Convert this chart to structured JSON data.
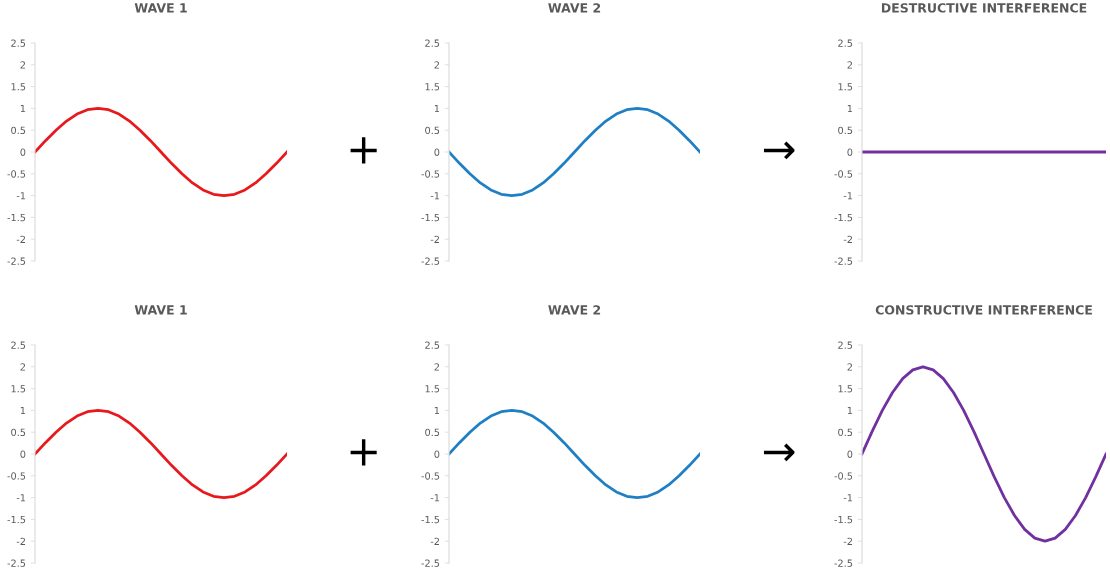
{
  "chart_data": [
    {
      "type": "line",
      "title": "WAVE 1",
      "categories": [
        null,
        null,
        null,
        null,
        null,
        null,
        null,
        null,
        null,
        null,
        null,
        null,
        null,
        null,
        null,
        null,
        null,
        null,
        null,
        null,
        null,
        null,
        null,
        null,
        null
      ],
      "ylim": [
        -2.5,
        2.5
      ],
      "yticks": [
        -2.5,
        -2,
        -1.5,
        -1,
        -0.5,
        0,
        0.5,
        1,
        1.5,
        2,
        2.5
      ],
      "grid": false,
      "legend": false,
      "marker": "none",
      "series": [
        {
          "color": "#e8191c",
          "values": [
            0,
            0.26,
            0.5,
            0.71,
            0.87,
            0.97,
            1,
            0.97,
            0.87,
            0.71,
            0.5,
            0.26,
            0,
            -0.26,
            -0.5,
            -0.71,
            -0.87,
            -0.97,
            -1,
            -0.97,
            -0.87,
            -0.71,
            -0.5,
            -0.26,
            0
          ]
        }
      ]
    },
    {
      "type": "line",
      "title": "WAVE 2",
      "annotations": [
        "+"
      ],
      "categories": [
        null,
        null,
        null,
        null,
        null,
        null,
        null,
        null,
        null,
        null,
        null,
        null,
        null,
        null,
        null,
        null,
        null,
        null,
        null,
        null,
        null,
        null,
        null,
        null,
        null
      ],
      "ylim": [
        -2.5,
        2.5
      ],
      "yticks": [
        -2.5,
        -2,
        -1.5,
        -1,
        -0.5,
        0,
        0.5,
        1,
        1.5,
        2,
        2.5
      ],
      "grid": false,
      "legend": false,
      "marker": "none",
      "series": [
        {
          "color": "#1f7fc4",
          "values": [
            0,
            -0.26,
            -0.5,
            -0.71,
            -0.87,
            -0.97,
            -1,
            -0.97,
            -0.87,
            -0.71,
            -0.5,
            -0.26,
            0,
            0.26,
            0.5,
            0.71,
            0.87,
            0.97,
            1,
            0.97,
            0.87,
            0.71,
            0.5,
            0.26,
            0
          ]
        }
      ]
    },
    {
      "type": "line",
      "title": "DESTRUCTIVE INTERFERENCE",
      "annotations": [
        "→"
      ],
      "categories": [
        null,
        null,
        null,
        null,
        null,
        null,
        null,
        null,
        null,
        null,
        null,
        null,
        null,
        null,
        null,
        null,
        null,
        null,
        null,
        null,
        null,
        null,
        null,
        null,
        null
      ],
      "ylim": [
        -2.5,
        2.5
      ],
      "yticks": [
        -2.5,
        -2,
        -1.5,
        -1,
        -0.5,
        0,
        0.5,
        1,
        1.5,
        2,
        2.5
      ],
      "grid": false,
      "legend": false,
      "marker": "none",
      "series": [
        {
          "color": "#7030a0",
          "values": [
            0,
            0,
            0,
            0,
            0,
            0,
            0,
            0,
            0,
            0,
            0,
            0,
            0,
            0,
            0,
            0,
            0,
            0,
            0,
            0,
            0,
            0,
            0,
            0,
            0
          ]
        }
      ]
    },
    {
      "type": "line",
      "title": "WAVE 1",
      "categories": [
        null,
        null,
        null,
        null,
        null,
        null,
        null,
        null,
        null,
        null,
        null,
        null,
        null,
        null,
        null,
        null,
        null,
        null,
        null,
        null,
        null,
        null,
        null,
        null,
        null
      ],
      "ylim": [
        -2.5,
        2.5
      ],
      "yticks": [
        -2.5,
        -2,
        -1.5,
        -1,
        -0.5,
        0,
        0.5,
        1,
        1.5,
        2,
        2.5
      ],
      "grid": false,
      "legend": false,
      "marker": "none",
      "series": [
        {
          "color": "#e8191c",
          "values": [
            0,
            0.26,
            0.5,
            0.71,
            0.87,
            0.97,
            1,
            0.97,
            0.87,
            0.71,
            0.5,
            0.26,
            0,
            -0.26,
            -0.5,
            -0.71,
            -0.87,
            -0.97,
            -1,
            -0.97,
            -0.87,
            -0.71,
            -0.5,
            -0.26,
            0
          ]
        }
      ]
    },
    {
      "type": "line",
      "title": "WAVE 2",
      "annotations": [
        "+"
      ],
      "categories": [
        null,
        null,
        null,
        null,
        null,
        null,
        null,
        null,
        null,
        null,
        null,
        null,
        null,
        null,
        null,
        null,
        null,
        null,
        null,
        null,
        null,
        null,
        null,
        null,
        null
      ],
      "ylim": [
        -2.5,
        2.5
      ],
      "yticks": [
        -2.5,
        -2,
        -1.5,
        -1,
        -0.5,
        0,
        0.5,
        1,
        1.5,
        2,
        2.5
      ],
      "grid": false,
      "legend": false,
      "marker": "none",
      "series": [
        {
          "color": "#1f7fc4",
          "values": [
            0,
            0.26,
            0.5,
            0.71,
            0.87,
            0.97,
            1,
            0.97,
            0.87,
            0.71,
            0.5,
            0.26,
            0,
            -0.26,
            -0.5,
            -0.71,
            -0.87,
            -0.97,
            -1,
            -0.97,
            -0.87,
            -0.71,
            -0.5,
            -0.26,
            0
          ]
        }
      ]
    },
    {
      "type": "line",
      "title": "CONSTRUCTIVE INTERFERENCE",
      "annotations": [
        "→"
      ],
      "categories": [
        null,
        null,
        null,
        null,
        null,
        null,
        null,
        null,
        null,
        null,
        null,
        null,
        null,
        null,
        null,
        null,
        null,
        null,
        null,
        null,
        null,
        null,
        null,
        null,
        null
      ],
      "ylim": [
        -2.5,
        2.5
      ],
      "yticks": [
        -2.5,
        -2,
        -1.5,
        -1,
        -0.5,
        0,
        0.5,
        1,
        1.5,
        2,
        2.5
      ],
      "grid": false,
      "legend": false,
      "marker": "none",
      "series": [
        {
          "color": "#7030a0",
          "values": [
            0,
            0.52,
            1,
            1.41,
            1.73,
            1.93,
            2,
            1.93,
            1.73,
            1.41,
            1,
            0.52,
            0,
            -0.52,
            -1,
            -1.41,
            -1.73,
            -1.93,
            -2,
            -1.93,
            -1.73,
            -1.41,
            -1,
            -0.52,
            0
          ]
        }
      ]
    }
  ]
}
